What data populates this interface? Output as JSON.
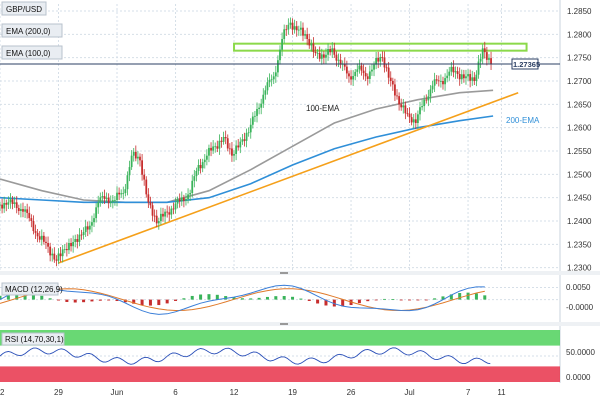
{
  "chart_data": [
    {
      "type": "line",
      "panel": "price",
      "symbol": "GBP/USD",
      "indicator_labels": [
        "EMA (200,0)",
        "EMA (100,0)"
      ],
      "last_price": "1.27365",
      "y_ticks": [
        "1.2850",
        "1.2800",
        "1.2750",
        "1.2700",
        "1.2650",
        "1.2600",
        "1.2550",
        "1.2500",
        "1.2450",
        "1.2400",
        "1.2350",
        "1.2300"
      ],
      "ylim": [
        1.2295,
        1.2865
      ],
      "x_ticks": [
        "22",
        "29",
        "Jun",
        "6",
        "12",
        "19",
        "26",
        "Jul",
        "7",
        "11"
      ],
      "x_tick_days": [
        0,
        7,
        14,
        21,
        28,
        35,
        42,
        49,
        56,
        60
      ],
      "xlim": [
        0,
        67
      ],
      "annotations": [
        "100-EMA",
        "200-EMA"
      ],
      "ohlc_close": [
        [
          0,
          1.2435
        ],
        [
          1,
          1.244
        ],
        [
          2,
          1.242
        ],
        [
          3,
          1.24
        ],
        [
          4,
          1.236
        ],
        [
          5,
          1.2345
        ],
        [
          6,
          1.2315
        ],
        [
          7,
          1.234
        ],
        [
          8,
          1.2355
        ],
        [
          9,
          1.237
        ],
        [
          10,
          1.239
        ],
        [
          11,
          1.244
        ],
        [
          12,
          1.245
        ],
        [
          13,
          1.2445
        ],
        [
          14,
          1.246
        ],
        [
          15,
          1.254
        ],
        [
          16,
          1.253
        ],
        [
          17,
          1.244
        ],
        [
          18,
          1.2395
        ],
        [
          19,
          1.242
        ],
        [
          20,
          1.2425
        ],
        [
          21,
          1.245
        ],
        [
          22,
          1.246
        ],
        [
          23,
          1.252
        ],
        [
          24,
          1.254
        ],
        [
          25,
          1.256
        ],
        [
          26,
          1.258
        ],
        [
          27,
          1.254
        ],
        [
          28,
          1.257
        ],
        [
          29,
          1.259
        ],
        [
          30,
          1.264
        ],
        [
          31,
          1.268
        ],
        [
          32,
          1.271
        ],
        [
          33,
          1.279
        ],
        [
          34,
          1.2825
        ],
        [
          35,
          1.281
        ],
        [
          36,
          1.279
        ],
        [
          37,
          1.276
        ],
        [
          38,
          1.275
        ],
        [
          39,
          1.277
        ],
        [
          40,
          1.2735
        ],
        [
          41,
          1.271
        ],
        [
          42,
          1.2725
        ],
        [
          43,
          1.271
        ],
        [
          44,
          1.2735
        ],
        [
          45,
          1.275
        ],
        [
          46,
          1.27
        ],
        [
          47,
          1.265
        ],
        [
          48,
          1.263
        ],
        [
          49,
          1.261
        ],
        [
          50,
          1.266
        ],
        [
          51,
          1.269
        ],
        [
          52,
          1.27
        ],
        [
          53,
          1.272
        ],
        [
          54,
          1.2715
        ],
        [
          55,
          1.271
        ],
        [
          56,
          1.27
        ],
        [
          57,
          1.277
        ],
        [
          58,
          1.2737
        ]
      ],
      "series": [
        {
          "name": "100-EMA",
          "color": "#9a9a9a",
          "points": [
            [
              0,
              1.249
            ],
            [
              5,
              1.2465
            ],
            [
              10,
              1.2445
            ],
            [
              15,
              1.244
            ],
            [
              20,
              1.244
            ],
            [
              25,
              1.2465
            ],
            [
              30,
              1.251
            ],
            [
              35,
              1.256
            ],
            [
              40,
              1.261
            ],
            [
              45,
              1.264
            ],
            [
              50,
              1.266
            ],
            [
              55,
              1.2675
            ],
            [
              59,
              1.268
            ]
          ]
        },
        {
          "name": "200-EMA",
          "color": "#2f8fd8",
          "points": [
            [
              0,
              1.245
            ],
            [
              5,
              1.2445
            ],
            [
              10,
              1.244
            ],
            [
              15,
              1.244
            ],
            [
              20,
              1.244
            ],
            [
              25,
              1.245
            ],
            [
              30,
              1.248
            ],
            [
              35,
              1.252
            ],
            [
              40,
              1.2555
            ],
            [
              45,
              1.258
            ],
            [
              50,
              1.26
            ],
            [
              55,
              1.2615
            ],
            [
              59,
              1.2625
            ]
          ]
        }
      ],
      "trendline": {
        "color": "#f5a01a",
        "points": [
          [
            7,
            1.231
          ],
          [
            62,
            1.2675
          ]
        ]
      },
      "resistance_zone": {
        "color": "#8bd94a",
        "y": [
          1.2765,
          1.278
        ],
        "x": [
          28,
          63
        ]
      },
      "last_price_line_color": "#2b3f63"
    },
    {
      "type": "bar",
      "panel": "macd",
      "label": "MACD (12,26,9)",
      "y_ticks": [
        "0.0050",
        "-0.0000"
      ],
      "ylim": [
        -0.008,
        0.0085
      ]
    },
    {
      "type": "line",
      "panel": "rsi",
      "label": "RSI (14,70,30,1)",
      "y_ticks": [
        "50.0000",
        "0.0000"
      ],
      "ylim": [
        0,
        100
      ],
      "overbought": 70,
      "oversold": 30
    }
  ],
  "colors": {
    "up": "#39b35a",
    "down": "#c72d2d",
    "grid": "#d6dfe8",
    "rsi_line": "#2a4fb8",
    "macd_line": "#3b7fd8",
    "signal_line": "#e07a2a"
  }
}
